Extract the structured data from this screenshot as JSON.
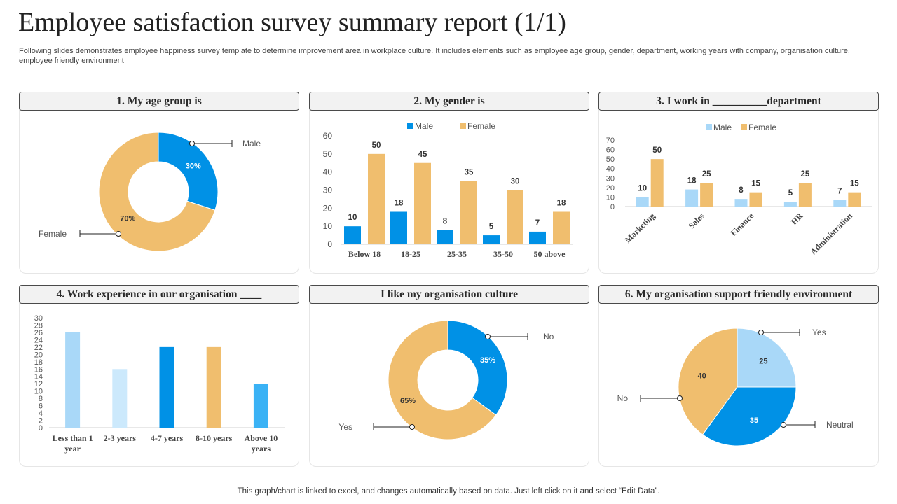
{
  "page": {
    "title": "Employee satisfaction survey summary report (1/1)",
    "subtitle": "Following slides demonstrates employee happiness survey template to determine improvement area in workplace culture. It includes elements such as employee age group, gender, department, working years with company, organisation culture, employee friendly environment",
    "footer": "This graph/chart is linked to excel,  and changes automatically based on data. Just left click on it and select “Edit Data”."
  },
  "colors": {
    "blue": "#0091e6",
    "orange": "#f0be6e",
    "light_blue": "#a9d8f8",
    "paler_blue": "#cce9fc",
    "mid_blue": "#3ab2f5"
  },
  "panels": {
    "age": {
      "header": "1. My age group is"
    },
    "gender": {
      "header": "2. My gender is"
    },
    "department": {
      "header": "3. I work in __________department"
    },
    "experience": {
      "header": "4. Work experience in our organisation   ____"
    },
    "culture": {
      "header": "I like my organisation culture"
    },
    "environment": {
      "header": "6. My organisation support friendly environment"
    }
  },
  "chart_data": [
    {
      "id": "age",
      "type": "pie",
      "donut": true,
      "slices": [
        {
          "label": "Male",
          "value": 30,
          "display": "30%",
          "color": "#0091e6"
        },
        {
          "label": "Female",
          "value": 70,
          "display": "70%",
          "color": "#f0be6e"
        }
      ]
    },
    {
      "id": "gender",
      "type": "bar",
      "categories": [
        "Below 18",
        "18-25",
        "25-35",
        "35-50",
        "50 above"
      ],
      "series": [
        {
          "name": "Male",
          "color": "#0091e6",
          "values": [
            10,
            18,
            8,
            5,
            7
          ]
        },
        {
          "name": "Female",
          "color": "#f0be6e",
          "values": [
            50,
            45,
            35,
            30,
            18
          ]
        }
      ],
      "ylim": [
        0,
        60
      ],
      "yticks": [
        "0",
        "10",
        "20",
        "30",
        "40",
        "50",
        "60"
      ],
      "legend": "top"
    },
    {
      "id": "department",
      "type": "bar",
      "categories": [
        "Marketing",
        "Sales",
        "Finance",
        "HR",
        "Administration"
      ],
      "series": [
        {
          "name": "Male",
          "color": "#a9d8f8",
          "values": [
            10,
            18,
            8,
            5,
            7
          ]
        },
        {
          "name": "Female",
          "color": "#f0be6e",
          "values": [
            50,
            25,
            15,
            25,
            15
          ]
        }
      ],
      "ylim": [
        0,
        70
      ],
      "yticks": [
        "0",
        "10",
        "20",
        "30",
        "40",
        "50",
        "60",
        "70"
      ],
      "legend": "top"
    },
    {
      "id": "experience",
      "type": "bar",
      "categories": [
        "Less than 1 year",
        "2-3 years",
        "4-7 years",
        "8-10 years",
        "Above 10 years"
      ],
      "category_lines": [
        [
          "Less than 1",
          "year"
        ],
        [
          "2-3 years"
        ],
        [
          "4-7 years"
        ],
        [
          "8-10 years"
        ],
        [
          "Above 10",
          "years"
        ]
      ],
      "values": [
        26,
        16,
        22,
        22,
        12
      ],
      "colors": [
        "#a9d8f8",
        "#cce9fc",
        "#0091e6",
        "#f0be6e",
        "#3ab2f5"
      ],
      "ylim": [
        0,
        30
      ],
      "yticks": [
        "0",
        "2",
        "4",
        "6",
        "8",
        "10",
        "12",
        "14",
        "16",
        "18",
        "20",
        "22",
        "24",
        "26",
        "28",
        "30"
      ]
    },
    {
      "id": "culture",
      "type": "pie",
      "donut": true,
      "slices": [
        {
          "label": "No",
          "value": 35,
          "display": "35%",
          "color": "#0091e6"
        },
        {
          "label": "Yes",
          "value": 65,
          "display": "65%",
          "color": "#f0be6e"
        }
      ]
    },
    {
      "id": "environment",
      "type": "pie",
      "donut": false,
      "slices": [
        {
          "label": "Yes",
          "value": 25,
          "display": "25",
          "color": "#a9d8f8"
        },
        {
          "label": "Neutral",
          "value": 35,
          "display": "35",
          "color": "#0091e6"
        },
        {
          "label": "No",
          "value": 40,
          "display": "40",
          "color": "#f0be6e"
        }
      ]
    }
  ]
}
